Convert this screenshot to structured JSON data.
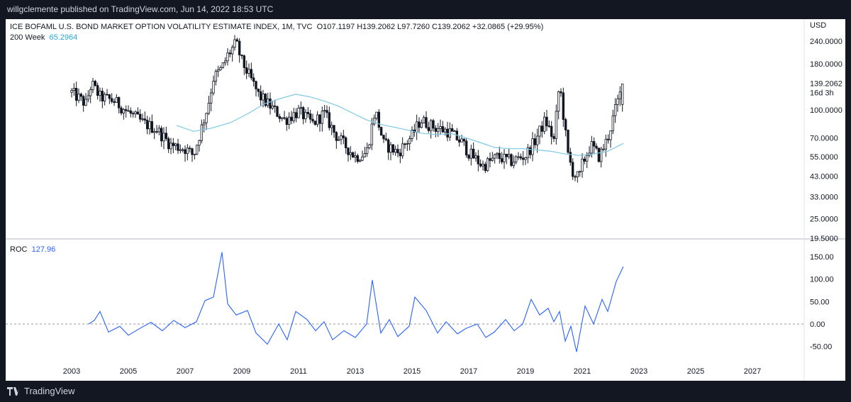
{
  "header": {
    "published": "willgclemente published on TradingView.com, Jun 14, 2022 18:53 UTC"
  },
  "legend": {
    "symbol_line": "ICE BOFAML U.S. BOND MARKET OPTION VOLATILITY ESTIMATE INDEX, 1M, TVC",
    "ohlc": "O107.1197  H139.2062  L97.7260  C139.2062  +32.0865 (+29.95%)",
    "ma_label": "200 Week",
    "ma_value": "65.2964",
    "roc_label": "ROC",
    "roc_value": "127.96"
  },
  "price_axis": {
    "currency": "USD",
    "last_price": "139.2062",
    "countdown": "16d 3h"
  },
  "footer": {
    "brand": "TradingView"
  },
  "colors": {
    "background": "#131722",
    "panel": "#ffffff",
    "candle": "#131722",
    "ma": "#7ec8e3",
    "roc": "#2962ff",
    "price_tag": "#131722"
  },
  "chart_data": [
    {
      "type": "candlestick",
      "title": "ICE BOFAML U.S. BOND MARKET OPTION VOLATILITY ESTIMATE INDEX, 1M, TVC",
      "scale": "log",
      "ylim": [
        19.5,
        260
      ],
      "y_ticks": [
        "240.0000",
        "180.0000",
        "100.0000",
        "70.0000",
        "55.0000",
        "43.0000",
        "33.0000",
        "25.0000",
        "19.5000"
      ],
      "x_ticks": [
        "2003",
        "2005",
        "2007",
        "2009",
        "2011",
        "2013",
        "2015",
        "2017",
        "2019",
        "2021",
        "2023",
        "2025",
        "2027"
      ],
      "close_path": [
        [
          2003.0,
          125
        ],
        [
          2003.5,
          108
        ],
        [
          2003.7,
          140
        ],
        [
          2004.0,
          118
        ],
        [
          2004.5,
          112
        ],
        [
          2005.0,
          97
        ],
        [
          2005.5,
          85
        ],
        [
          2006.0,
          78
        ],
        [
          2006.5,
          64
        ],
        [
          2007.0,
          61
        ],
        [
          2007.3,
          56
        ],
        [
          2007.5,
          72
        ],
        [
          2007.8,
          105
        ],
        [
          2008.0,
          150
        ],
        [
          2008.3,
          170
        ],
        [
          2008.5,
          200
        ],
        [
          2008.8,
          235
        ],
        [
          2009.0,
          185
        ],
        [
          2009.3,
          150
        ],
        [
          2009.6,
          120
        ],
        [
          2010.0,
          105
        ],
        [
          2010.5,
          88
        ],
        [
          2011.0,
          98
        ],
        [
          2011.5,
          84
        ],
        [
          2011.9,
          96
        ],
        [
          2012.3,
          73
        ],
        [
          2012.7,
          62
        ],
        [
          2013.0,
          55
        ],
        [
          2013.4,
          58
        ],
        [
          2013.7,
          100
        ],
        [
          2014.0,
          65
        ],
        [
          2014.5,
          58
        ],
        [
          2015.0,
          72
        ],
        [
          2015.3,
          88
        ],
        [
          2015.8,
          80
        ],
        [
          2016.3,
          76
        ],
        [
          2016.8,
          65
        ],
        [
          2017.0,
          58
        ],
        [
          2017.5,
          49
        ],
        [
          2018.0,
          55
        ],
        [
          2018.5,
          52
        ],
        [
          2019.0,
          56
        ],
        [
          2019.3,
          66
        ],
        [
          2019.7,
          88
        ],
        [
          2020.0,
          68
        ],
        [
          2020.2,
          142
        ],
        [
          2020.5,
          56
        ],
        [
          2020.7,
          44
        ],
        [
          2020.9,
          42
        ],
        [
          2021.0,
          50
        ],
        [
          2021.3,
          64
        ],
        [
          2021.6,
          55
        ],
        [
          2021.9,
          70
        ],
        [
          2022.2,
          105
        ],
        [
          2022.45,
          139.2
        ]
      ],
      "series": [
        {
          "name": "200 Week",
          "values": [
            [
              2006.7,
              82
            ],
            [
              2007.3,
              76
            ],
            [
              2007.9,
              79
            ],
            [
              2008.6,
              85
            ],
            [
              2009.2,
              95
            ],
            [
              2009.8,
              108
            ],
            [
              2010.4,
              116
            ],
            [
              2010.9,
              122
            ],
            [
              2011.4,
              118
            ],
            [
              2011.9,
              112
            ],
            [
              2012.4,
              105
            ],
            [
              2012.9,
              96
            ],
            [
              2013.4,
              88
            ],
            [
              2013.9,
              83
            ],
            [
              2014.4,
              80
            ],
            [
              2014.9,
              77
            ],
            [
              2015.4,
              74
            ],
            [
              2015.9,
              73
            ],
            [
              2016.4,
              74
            ],
            [
              2016.9,
              70
            ],
            [
              2017.4,
              66
            ],
            [
              2017.9,
              62
            ],
            [
              2018.4,
              61
            ],
            [
              2018.9,
              61
            ],
            [
              2019.4,
              60
            ],
            [
              2019.9,
              59
            ],
            [
              2020.4,
              57
            ],
            [
              2020.9,
              56
            ],
            [
              2021.4,
              57
            ],
            [
              2021.9,
              59
            ],
            [
              2022.45,
              65.2964
            ]
          ]
        }
      ]
    },
    {
      "type": "line",
      "title": "ROC",
      "ylim": [
        -70,
        170
      ],
      "y_ticks": [
        "150.00",
        "100.00",
        "50.00",
        "0.00",
        "-50.00"
      ],
      "series": [
        {
          "name": "ROC",
          "values": [
            [
              2003.6,
              0
            ],
            [
              2003.8,
              8
            ],
            [
              2004.0,
              28
            ],
            [
              2004.3,
              -18
            ],
            [
              2004.7,
              -5
            ],
            [
              2005.0,
              -25
            ],
            [
              2005.4,
              -10
            ],
            [
              2005.8,
              4
            ],
            [
              2006.2,
              -15
            ],
            [
              2006.6,
              8
            ],
            [
              2007.0,
              -8
            ],
            [
              2007.4,
              5
            ],
            [
              2007.7,
              52
            ],
            [
              2008.0,
              60
            ],
            [
              2008.3,
              160
            ],
            [
              2008.5,
              45
            ],
            [
              2008.8,
              20
            ],
            [
              2009.2,
              30
            ],
            [
              2009.5,
              -20
            ],
            [
              2009.9,
              -45
            ],
            [
              2010.3,
              0
            ],
            [
              2010.6,
              -35
            ],
            [
              2010.9,
              28
            ],
            [
              2011.3,
              10
            ],
            [
              2011.6,
              -15
            ],
            [
              2011.9,
              5
            ],
            [
              2012.2,
              -35
            ],
            [
              2012.6,
              -15
            ],
            [
              2013.0,
              -30
            ],
            [
              2013.4,
              0
            ],
            [
              2013.6,
              98
            ],
            [
              2013.9,
              -20
            ],
            [
              2014.2,
              10
            ],
            [
              2014.5,
              -28
            ],
            [
              2014.9,
              -5
            ],
            [
              2015.1,
              60
            ],
            [
              2015.5,
              30
            ],
            [
              2015.9,
              -20
            ],
            [
              2016.2,
              5
            ],
            [
              2016.6,
              -22
            ],
            [
              2016.9,
              -10
            ],
            [
              2017.3,
              0
            ],
            [
              2017.6,
              -30
            ],
            [
              2017.9,
              -18
            ],
            [
              2018.3,
              10
            ],
            [
              2018.6,
              -15
            ],
            [
              2018.9,
              0
            ],
            [
              2019.2,
              55
            ],
            [
              2019.5,
              20
            ],
            [
              2019.8,
              35
            ],
            [
              2020.0,
              5
            ],
            [
              2020.2,
              28
            ],
            [
              2020.4,
              -38
            ],
            [
              2020.6,
              -5
            ],
            [
              2020.8,
              -62
            ],
            [
              2021.1,
              40
            ],
            [
              2021.4,
              0
            ],
            [
              2021.7,
              55
            ],
            [
              2021.9,
              28
            ],
            [
              2022.2,
              95
            ],
            [
              2022.45,
              127.96
            ]
          ]
        }
      ]
    }
  ]
}
